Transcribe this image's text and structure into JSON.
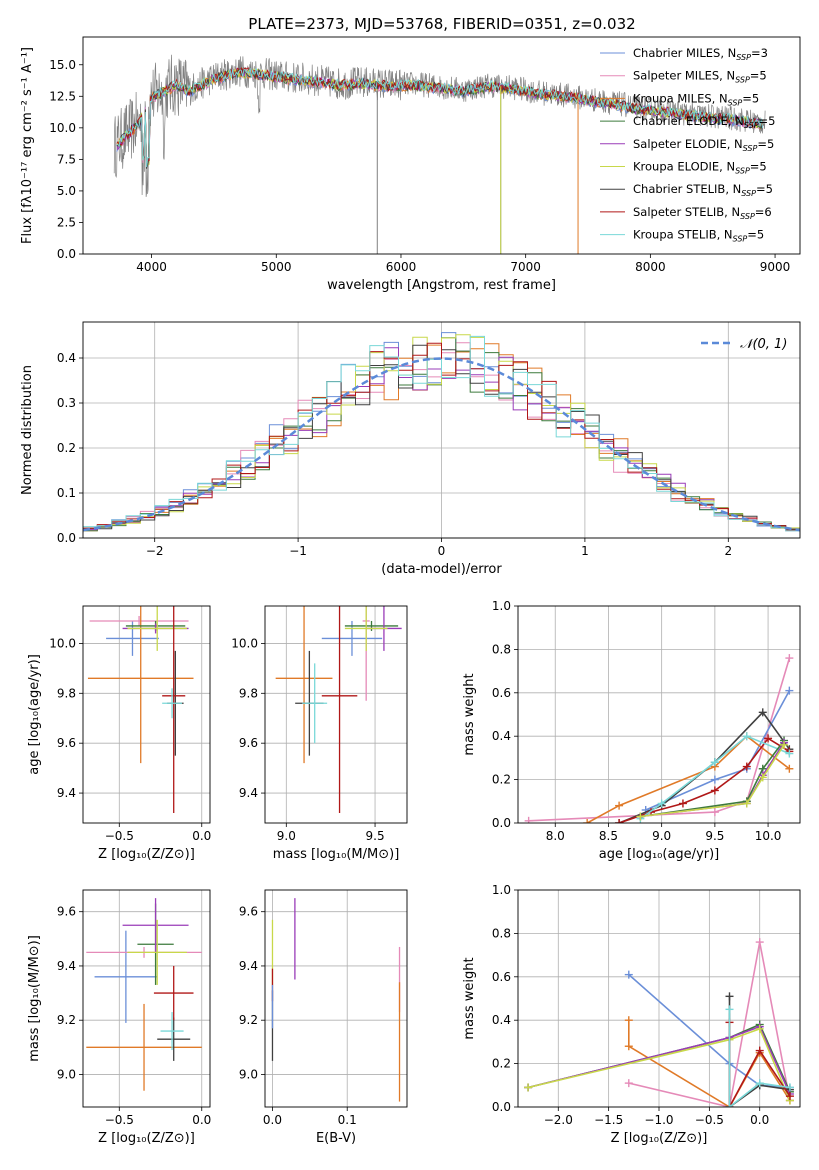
{
  "figure_title": "PLATE=2373, MJD=53768, FIBERID=0351, z=0.032",
  "colors": {
    "Chabrier MILES": "#6b8fd8",
    "Salpeter MILES": "#e58ab8",
    "Kroupa MILES": "#e07a28",
    "Chabrier ELODIE": "#3c7a3c",
    "Salpeter ELODIE": "#9a3cb8",
    "Kroupa ELODIE": "#c8d84a",
    "Chabrier STELIB": "#404040",
    "Salpeter STELIB": "#b01818",
    "Kroupa STELIB": "#7ad8d8",
    "data": "#808080",
    "normal": "#5b8ad8",
    "grid": "#b0b0b0"
  },
  "chart_data": [
    {
      "id": "spectrum",
      "type": "line",
      "title": "PLATE=2373, MJD=53768, FIBERID=0351, z=0.032",
      "xlabel": "wavelength [Angstrom, rest frame]",
      "ylabel": "Flux [fλ10⁻¹⁷ erg cm⁻² s⁻¹ A⁻¹]",
      "xlim": [
        3450,
        9200
      ],
      "ylim": [
        0,
        17.2
      ],
      "xticks": [
        4000,
        5000,
        6000,
        7000,
        8000,
        9000
      ],
      "yticks": [
        0.0,
        2.5,
        5.0,
        7.5,
        10.0,
        12.5,
        15.0
      ],
      "yticklabels": [
        "0.0",
        "2.5",
        "5.0",
        "7.5",
        "10.0",
        "12.5",
        "15.0"
      ],
      "legend_position": "top-right",
      "legend": [
        {
          "label": "Chabrier MILES, N",
          "sub": "SSP",
          "suffix": "=3"
        },
        {
          "label": "Salpeter MILES, N",
          "sub": "SSP",
          "suffix": "=5"
        },
        {
          "label": "Kroupa MILES, N",
          "sub": "SSP",
          "suffix": "=5"
        },
        {
          "label": "Chabrier ELODIE, N",
          "sub": "SSP",
          "suffix": "=5"
        },
        {
          "label": "Salpeter ELODIE, N",
          "sub": "SSP",
          "suffix": "=5"
        },
        {
          "label": "Kroupa ELODIE, N",
          "sub": "SSP",
          "suffix": "=5"
        },
        {
          "label": "Chabrier STELIB, N",
          "sub": "SSP",
          "suffix": "=5"
        },
        {
          "label": "Salpeter STELIB, N",
          "sub": "SSP",
          "suffix": "=6"
        },
        {
          "label": "Kroupa STELIB, N",
          "sub": "SSP",
          "suffix": "=5"
        }
      ],
      "continuum_x": [
        3700,
        3800,
        3900,
        4000,
        4100,
        4200,
        4300,
        4500,
        4700,
        4900,
        5100,
        5300,
        5500,
        5700,
        5900,
        6100,
        6300,
        6500,
        6700,
        6900,
        7100,
        7300,
        7500,
        7700,
        7900,
        8100,
        8300,
        8500,
        8700,
        8900
      ],
      "continuum_y": [
        8.5,
        9.5,
        10.5,
        12.5,
        13.0,
        13.5,
        13.0,
        14.0,
        14.5,
        14.3,
        14.0,
        13.8,
        13.5,
        13.6,
        13.4,
        13.5,
        13.3,
        13.0,
        13.4,
        13.2,
        12.8,
        12.6,
        12.3,
        12.0,
        11.6,
        11.4,
        11.1,
        10.9,
        10.7,
        10.4
      ]
    },
    {
      "id": "residuals",
      "type": "histogram",
      "xlabel": "(data-model)/error",
      "ylabel": "Normed distribution",
      "xlim": [
        -2.5,
        2.5
      ],
      "ylim": [
        0,
        0.48
      ],
      "xticks": [
        -2,
        -1,
        0,
        1,
        2
      ],
      "xticklabels": [
        "−2",
        "−1",
        "0",
        "1",
        "2"
      ],
      "yticks": [
        0.0,
        0.1,
        0.2,
        0.3,
        0.4
      ],
      "yticklabels": [
        "0.0",
        "0.1",
        "0.2",
        "0.3",
        "0.4"
      ],
      "legend_position": "top-right",
      "legend": [
        "𝒩(0, 1)"
      ],
      "grid": true
    },
    {
      "id": "age_vs_Z",
      "type": "scatter",
      "xlabel": "Z [log₁₀(Z/Z⊙)]",
      "ylabel": "age [log₁₀(age/yr)]",
      "xlim": [
        -0.72,
        0.05
      ],
      "ylim": [
        9.28,
        10.15
      ],
      "xticks": [
        -0.5,
        0.0
      ],
      "xticklabels": [
        "−0.5",
        "0.0"
      ],
      "yticks": [
        9.4,
        9.6,
        9.8,
        10.0
      ],
      "yticklabels": [
        "9.4",
        "9.6",
        "9.8",
        "10.0"
      ],
      "points": [
        {
          "model": "Chabrier MILES",
          "x": -0.42,
          "y": 10.02,
          "xerr": 0.16,
          "yerr": 0.07
        },
        {
          "model": "Salpeter MILES",
          "x": -0.38,
          "y": 10.09,
          "xerr": 0.3,
          "yerr": 0.02
        },
        {
          "model": "Kroupa MILES",
          "x": -0.37,
          "y": 9.86,
          "xerr": 0.32,
          "yerr": 0.34
        },
        {
          "model": "Chabrier ELODIE",
          "x": -0.28,
          "y": 10.07,
          "xerr": 0.18,
          "yerr": 0.02
        },
        {
          "model": "Salpeter ELODIE",
          "x": -0.28,
          "y": 10.06,
          "xerr": 0.2,
          "yerr": 0.02
        },
        {
          "model": "Kroupa ELODIE",
          "x": -0.27,
          "y": 10.06,
          "xerr": 0.18,
          "yerr": 0.09
        },
        {
          "model": "Chabrier STELIB",
          "x": -0.16,
          "y": 9.76,
          "xerr": 0.05,
          "yerr": 0.21
        },
        {
          "model": "Salpeter STELIB",
          "x": -0.17,
          "y": 9.79,
          "xerr": 0.07,
          "yerr": 0.47
        },
        {
          "model": "Kroupa STELIB",
          "x": -0.18,
          "y": 9.76,
          "xerr": 0.06,
          "yerr": 0.06
        }
      ]
    },
    {
      "id": "age_vs_mass",
      "type": "scatter",
      "xlabel": "mass [log₁₀(M/M⊙)]",
      "ylabel": "",
      "xlim": [
        8.88,
        9.68
      ],
      "ylim": [
        9.28,
        10.15
      ],
      "xticks": [
        9.0,
        9.5
      ],
      "xticklabels": [
        "9.0",
        "9.5"
      ],
      "yticks": [
        9.4,
        9.6,
        9.8,
        10.0
      ],
      "yticklabels": [
        "9.4",
        "9.6",
        "9.8",
        "10.0"
      ],
      "points": [
        {
          "model": "Chabrier MILES",
          "x": 9.37,
          "y": 10.02,
          "xerr": 0.17,
          "yerr": 0.07
        },
        {
          "model": "Salpeter MILES",
          "x": 9.45,
          "y": 10.09,
          "xerr": 0.02,
          "yerr": 0.32
        },
        {
          "model": "Kroupa MILES",
          "x": 9.1,
          "y": 9.86,
          "xerr": 0.16,
          "yerr": 0.34
        },
        {
          "model": "Chabrier ELODIE",
          "x": 9.48,
          "y": 10.07,
          "xerr": 0.15,
          "yerr": 0.02
        },
        {
          "model": "Salpeter ELODIE",
          "x": 9.55,
          "y": 10.06,
          "xerr": 0.1,
          "yerr": 0.09
        },
        {
          "model": "Kroupa ELODIE",
          "x": 9.45,
          "y": 10.06,
          "xerr": 0.12,
          "yerr": 0.09
        },
        {
          "model": "Chabrier STELIB",
          "x": 9.13,
          "y": 9.76,
          "xerr": 0.08,
          "yerr": 0.21
        },
        {
          "model": "Salpeter STELIB",
          "x": 9.3,
          "y": 9.79,
          "xerr": 0.1,
          "yerr": 0.47
        },
        {
          "model": "Kroupa STELIB",
          "x": 9.16,
          "y": 9.76,
          "xerr": 0.07,
          "yerr": 0.16
        }
      ]
    },
    {
      "id": "weight_vs_age",
      "type": "line",
      "xlabel": "age [log₁₀(age/yr)]",
      "ylabel": "mass weight",
      "xlim": [
        7.65,
        10.3
      ],
      "ylim": [
        0,
        1
      ],
      "xticks": [
        8.0,
        8.5,
        9.0,
        9.5,
        10.0
      ],
      "xticklabels": [
        "8.0",
        "8.5",
        "9.0",
        "9.5",
        "10.0"
      ],
      "yticks": [
        0.0,
        0.2,
        0.4,
        0.6,
        0.8,
        1.0
      ],
      "yticklabels": [
        "0.0",
        "0.2",
        "0.4",
        "0.6",
        "0.8",
        "1.0"
      ],
      "grid": true,
      "series": [
        {
          "model": "Salpeter MILES",
          "x": [
            7.75,
            9.5,
            9.8,
            10.2
          ],
          "y": [
            0.01,
            0.05,
            0.1,
            0.76
          ]
        },
        {
          "model": "Chabrier MILES",
          "x": [
            8.85,
            9.5,
            9.8,
            10.2
          ],
          "y": [
            0.06,
            0.2,
            0.25,
            0.61
          ]
        },
        {
          "model": "Kroupa MILES",
          "x": [
            8.3,
            8.6,
            9.5,
            9.8,
            10.2
          ],
          "y": [
            0.0,
            0.08,
            0.26,
            0.4,
            0.25
          ]
        },
        {
          "model": "Chabrier STELIB",
          "x": [
            8.6,
            9.0,
            9.5,
            9.95,
            10.2
          ],
          "y": [
            0.0,
            0.08,
            0.28,
            0.51,
            0.34
          ]
        },
        {
          "model": "Salpeter STELIB",
          "x": [
            8.6,
            8.9,
            9.2,
            9.5,
            9.8,
            10.0,
            10.2
          ],
          "y": [
            0.0,
            0.05,
            0.09,
            0.15,
            0.26,
            0.39,
            0.33
          ]
        },
        {
          "model": "Kroupa STELIB",
          "x": [
            8.8,
            9.0,
            9.5,
            9.8,
            10.2
          ],
          "y": [
            0.02,
            0.09,
            0.28,
            0.4,
            0.32
          ]
        },
        {
          "model": "Chabrier ELODIE",
          "x": [
            8.8,
            9.8,
            9.95,
            10.15
          ],
          "y": [
            0.03,
            0.1,
            0.25,
            0.38
          ]
        },
        {
          "model": "Salpeter ELODIE",
          "x": [
            8.8,
            9.8,
            9.95,
            10.15
          ],
          "y": [
            0.03,
            0.09,
            0.22,
            0.37
          ]
        },
        {
          "model": "Kroupa ELODIE",
          "x": [
            8.8,
            9.8,
            9.95,
            10.15
          ],
          "y": [
            0.03,
            0.09,
            0.21,
            0.36
          ]
        }
      ]
    },
    {
      "id": "mass_vs_Z",
      "type": "scatter",
      "xlabel": "Z [log₁₀(Z/Z⊙)]",
      "ylabel": "mass [log₁₀(M/M⊙)]",
      "xlim": [
        -0.72,
        0.05
      ],
      "ylim": [
        8.88,
        9.68
      ],
      "xticks": [
        -0.5,
        0.0
      ],
      "xticklabels": [
        "−0.5",
        "0.0"
      ],
      "yticks": [
        9.0,
        9.2,
        9.4,
        9.6
      ],
      "yticklabels": [
        "9.0",
        "9.2",
        "9.4",
        "9.6"
      ],
      "points": [
        {
          "model": "Chabrier MILES",
          "x": -0.46,
          "y": 9.36,
          "xerr": 0.19,
          "yerr": 0.17
        },
        {
          "model": "Salpeter MILES",
          "x": -0.35,
          "y": 9.45,
          "xerr": 0.35,
          "yerr": 0.02
        },
        {
          "model": "Kroupa MILES",
          "x": -0.35,
          "y": 9.1,
          "xerr": 0.35,
          "yerr": 0.16
        },
        {
          "model": "Chabrier ELODIE",
          "x": -0.28,
          "y": 9.48,
          "xerr": 0.11,
          "yerr": 0.15
        },
        {
          "model": "Salpeter ELODIE",
          "x": -0.28,
          "y": 9.55,
          "xerr": 0.2,
          "yerr": 0.1
        },
        {
          "model": "Kroupa ELODIE",
          "x": -0.27,
          "y": 9.45,
          "xerr": 0.18,
          "yerr": 0.12
        },
        {
          "model": "Chabrier STELIB",
          "x": -0.17,
          "y": 9.13,
          "xerr": 0.1,
          "yerr": 0.08
        },
        {
          "model": "Salpeter STELIB",
          "x": -0.17,
          "y": 9.3,
          "xerr": 0.12,
          "yerr": 0.1
        },
        {
          "model": "Kroupa STELIB",
          "x": -0.18,
          "y": 9.16,
          "xerr": 0.07,
          "yerr": 0.07
        }
      ]
    },
    {
      "id": "mass_vs_ebv",
      "type": "scatter",
      "xlabel": "E(B-V)",
      "ylabel": "",
      "xlim": [
        -0.01,
        0.18
      ],
      "ylim": [
        8.88,
        9.68
      ],
      "xticks": [
        0.0,
        0.1
      ],
      "xticklabels": [
        "0.0",
        "0.1"
      ],
      "yticks": [
        9.0,
        9.2,
        9.4,
        9.6
      ],
      "yticklabels": [
        "9.0",
        "9.2",
        "9.4",
        "9.6"
      ],
      "points": [
        {
          "model": "Salpeter MILES",
          "x": 0.17,
          "y": 9.35,
          "xerr": 0.0,
          "yerr": 0.12
        },
        {
          "model": "Kroupa MILES",
          "x": 0.17,
          "y": 9.12,
          "xerr": 0.0,
          "yerr": 0.22
        },
        {
          "model": "Salpeter ELODIE",
          "x": 0.03,
          "y": 9.5,
          "xerr": 0.0,
          "yerr": 0.15
        },
        {
          "model": "Kroupa ELODIE",
          "x": 0.0,
          "y": 9.45,
          "xerr": 0.0,
          "yerr": 0.12
        },
        {
          "model": "Chabrier STELIB",
          "x": 0.0,
          "y": 9.18,
          "xerr": 0.0,
          "yerr": 0.13
        },
        {
          "model": "Salpeter STELIB",
          "x": 0.0,
          "y": 9.33,
          "xerr": 0.0,
          "yerr": 0.06
        },
        {
          "model": "Chabrier MILES",
          "x": 0.0,
          "y": 9.25,
          "xerr": 0.0,
          "yerr": 0.08
        }
      ]
    },
    {
      "id": "weight_vs_Z",
      "type": "line",
      "xlabel": "Z [log₁₀(Z/Z⊙)]",
      "ylabel": "mass weight",
      "xlim": [
        -2.4,
        0.4
      ],
      "ylim": [
        0,
        1
      ],
      "xticks": [
        -2.0,
        -1.5,
        -1.0,
        -0.5,
        0.0
      ],
      "xticklabels": [
        "−2.0",
        "−1.5",
        "−1.0",
        "−0.5",
        "0.0"
      ],
      "yticks": [
        0.0,
        0.2,
        0.4,
        0.6,
        0.8,
        1.0
      ],
      "yticklabels": [
        "0.0",
        "0.2",
        "0.4",
        "0.6",
        "0.8",
        "1.0"
      ],
      "grid": true,
      "series": [
        {
          "model": "Chabrier MILES",
          "x": [
            -1.3,
            -0.3,
            0.0,
            0.3
          ],
          "y": [
            0.61,
            0.2,
            0.1,
            0.09
          ]
        },
        {
          "model": "Salpeter MILES",
          "x": [
            -1.3,
            -0.3,
            0.0,
            0.3
          ],
          "y": [
            0.11,
            0.0,
            0.76,
            0.03
          ]
        },
        {
          "model": "Kroupa MILES",
          "x": [
            -1.3,
            -1.3,
            -0.3,
            0.0,
            0.3
          ],
          "y": [
            0.4,
            0.28,
            0.0,
            0.25,
            0.03
          ]
        },
        {
          "model": "Chabrier ELODIE",
          "x": [
            -2.3,
            -0.3,
            0.0,
            0.3
          ],
          "y": [
            0.09,
            0.32,
            0.38,
            0.07
          ]
        },
        {
          "model": "Salpeter ELODIE",
          "x": [
            -2.3,
            -0.3,
            0.0,
            0.3
          ],
          "y": [
            0.09,
            0.32,
            0.37,
            0.06
          ]
        },
        {
          "model": "Kroupa ELODIE",
          "x": [
            -2.3,
            -0.3,
            0.0,
            0.3
          ],
          "y": [
            0.09,
            0.31,
            0.36,
            0.03
          ]
        },
        {
          "model": "Chabrier STELIB",
          "x": [
            -0.3,
            -0.3,
            0.0,
            0.3
          ],
          "y": [
            0.51,
            0.0,
            0.1,
            0.08
          ]
        },
        {
          "model": "Salpeter STELIB",
          "x": [
            -0.3,
            -0.3,
            0.0,
            0.3
          ],
          "y": [
            0.39,
            0.0,
            0.26,
            0.05
          ]
        },
        {
          "model": "Kroupa STELIB",
          "x": [
            -0.3,
            -0.3,
            0.0,
            0.3
          ],
          "y": [
            0.45,
            0.0,
            0.11,
            0.09
          ]
        }
      ]
    }
  ]
}
